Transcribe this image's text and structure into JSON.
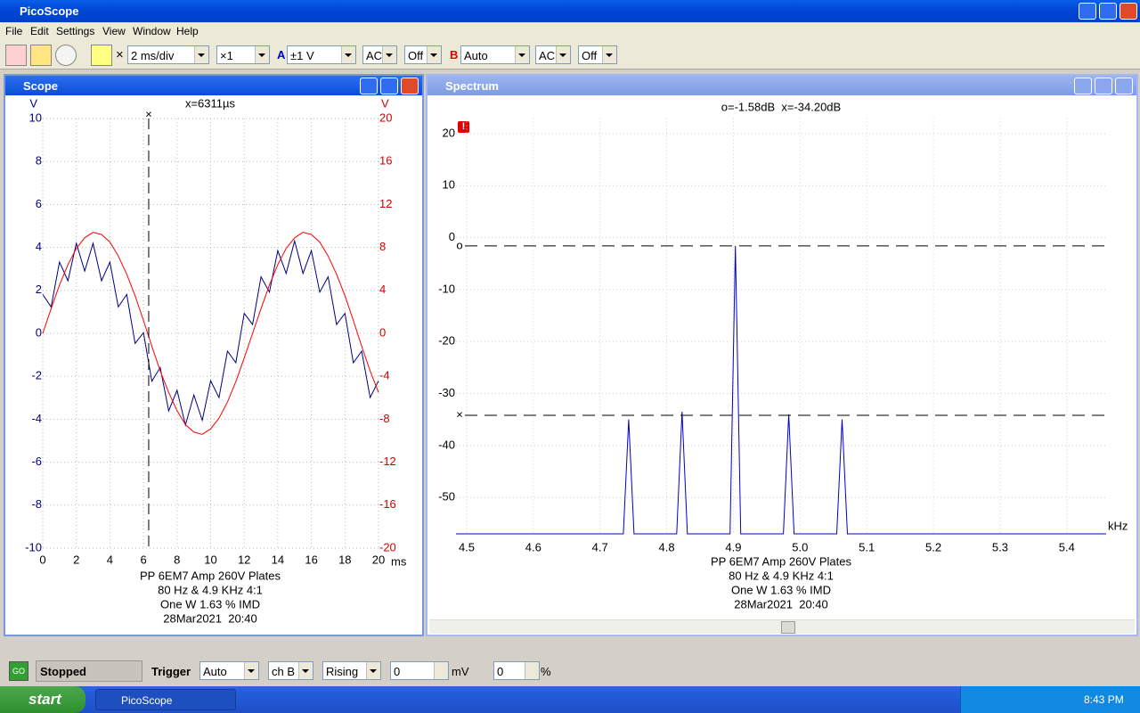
{
  "app": {
    "title": "PicoScope",
    "menu": [
      "File",
      "Edit",
      "Settings",
      "View",
      "Window",
      "Help"
    ]
  },
  "toolbar": {
    "cross": "×",
    "timebase": "2 ms/div",
    "multiplier": "×1",
    "channel_a": {
      "label": "A",
      "range": "±1 V",
      "coupling": "AC",
      "offset": "Off"
    },
    "channel_b": {
      "label": "B",
      "range": "Auto",
      "coupling": "AC",
      "offset": "Off"
    }
  },
  "windows": {
    "scope": {
      "title": "Scope"
    },
    "spectrum": {
      "title": "Spectrum",
      "warning": "!"
    }
  },
  "chart_data": [
    {
      "type": "line",
      "x": [
        0,
        0.5,
        1,
        1.5,
        2,
        2.5,
        3,
        3.5,
        4,
        4.5,
        5,
        5.5,
        6,
        6.5,
        7,
        7.5,
        8,
        8.5,
        9,
        9.5,
        10,
        10.5,
        11,
        11.5,
        12,
        12.5,
        13,
        13.5,
        14,
        14.5,
        15,
        15.5,
        16,
        16.5,
        17,
        17.5,
        18,
        18.5,
        19,
        19.5,
        20
      ],
      "series": [
        {
          "color": "#000080",
          "values": [
            1.81,
            1.23,
            3.32,
            2.45,
            4.19,
            2.9,
            4.19,
            2.45,
            3.32,
            1.23,
            1.81,
            -0.47,
            0.03,
            -2.23,
            -1.59,
            -3.61,
            -2.65,
            -4.27,
            -2.87,
            -4.05,
            -2.21,
            -2.99,
            -0.83,
            -1.37,
            0.93,
            0.41,
            2.63,
            1.92,
            3.85,
            2.79,
            4.3,
            2.79,
            3.85,
            1.92,
            2.63,
            0.41,
            0.93,
            -1.37,
            -0.83,
            -2.99,
            -2.21
          ]
        },
        {
          "color": "#ff0000",
          "axis": "y2",
          "values": [
            0,
            2.3,
            4.5,
            6.4,
            7.9,
            8.9,
            9.4,
            9.2,
            8.5,
            7.2,
            5.5,
            3.5,
            1.2,
            -1.2,
            -3.5,
            -5.5,
            -7.2,
            -8.5,
            -9.2,
            -9.4,
            -8.9,
            -7.9,
            -6.4,
            -4.5,
            -2.3,
            0,
            2.3,
            4.5,
            6.4,
            7.9,
            8.9,
            9.4,
            9.2,
            8.5,
            7.2,
            5.5,
            3.5,
            1.2,
            -1.2,
            -3.5,
            -5.5
          ]
        }
      ],
      "xlim": [
        0,
        20
      ],
      "xticks": [
        0,
        2,
        4,
        6,
        8,
        10,
        12,
        14,
        16,
        18,
        20
      ],
      "xlabel": "ms",
      "ylim": [
        -10,
        10
      ],
      "yticks": [
        -10,
        -8,
        -6,
        -4,
        -2,
        0,
        2,
        4,
        6,
        8,
        10
      ],
      "ylabel": "V",
      "y2lim": [
        -20,
        20
      ],
      "y2ticks": [
        -20,
        -16,
        -12,
        -8,
        -4,
        0,
        4,
        8,
        12,
        16,
        20
      ],
      "y2label": "V",
      "grid": true,
      "cursor_x": 6.311,
      "cursor_symbol": "×",
      "cursor_label": "x=6311µs",
      "caption": [
        "PP 6EM7 Amp 260V Plates",
        "80 Hz & 4.9 KHz 4:1",
        "One W 1.63 % IMD",
        "28Mar2021  20:40"
      ]
    },
    {
      "type": "line",
      "x": [
        4.484,
        4.735,
        4.743,
        4.751,
        4.815,
        4.823,
        4.831,
        4.895,
        4.903,
        4.911,
        4.975,
        4.983,
        4.991,
        5.055,
        5.063,
        5.071,
        5.459
      ],
      "series": [
        {
          "color": "#0000cd",
          "values": [
            -57,
            -57,
            -35,
            -57,
            -57,
            -33.5,
            -57,
            -57,
            -1.6,
            -57,
            -57,
            -34,
            -57,
            -57,
            -35,
            -57,
            -57
          ]
        }
      ],
      "xlim": [
        4.484,
        5.459
      ],
      "xticks": [
        4.5,
        4.6,
        4.7,
        4.8,
        4.9,
        {
          "value": 5,
          "label": "5.0"
        },
        5.1,
        5.2,
        5.3,
        5.4
      ],
      "xlabel": "kHz",
      "ylim": [
        -57,
        23
      ],
      "yticks": [
        -50,
        -40,
        -30,
        -20,
        -10,
        0,
        10,
        20
      ],
      "grid": true,
      "cursors": [
        -1.58,
        -34.2
      ],
      "cursor_symbols": [
        "o",
        "×"
      ],
      "cursor_label": "o=-1.58dB  x=-34.20dB",
      "caption": [
        "PP 6EM7 Amp 260V Plates",
        "80 Hz & 4.9 KHz 4:1",
        "One W 1.63 % IMD",
        "28Mar2021  20:40"
      ]
    }
  ],
  "status": {
    "go": "GO",
    "state": "Stopped",
    "trigger_label": "Trigger",
    "trigger_mode": "Auto",
    "trigger_channel": "ch B",
    "trigger_edge": "Rising",
    "threshold": "0",
    "threshold_unit": "mV",
    "delay": "0",
    "delay_unit": "%"
  },
  "taskbar": {
    "start": "start",
    "task": "PicoScope",
    "clock": "8:43 PM"
  }
}
